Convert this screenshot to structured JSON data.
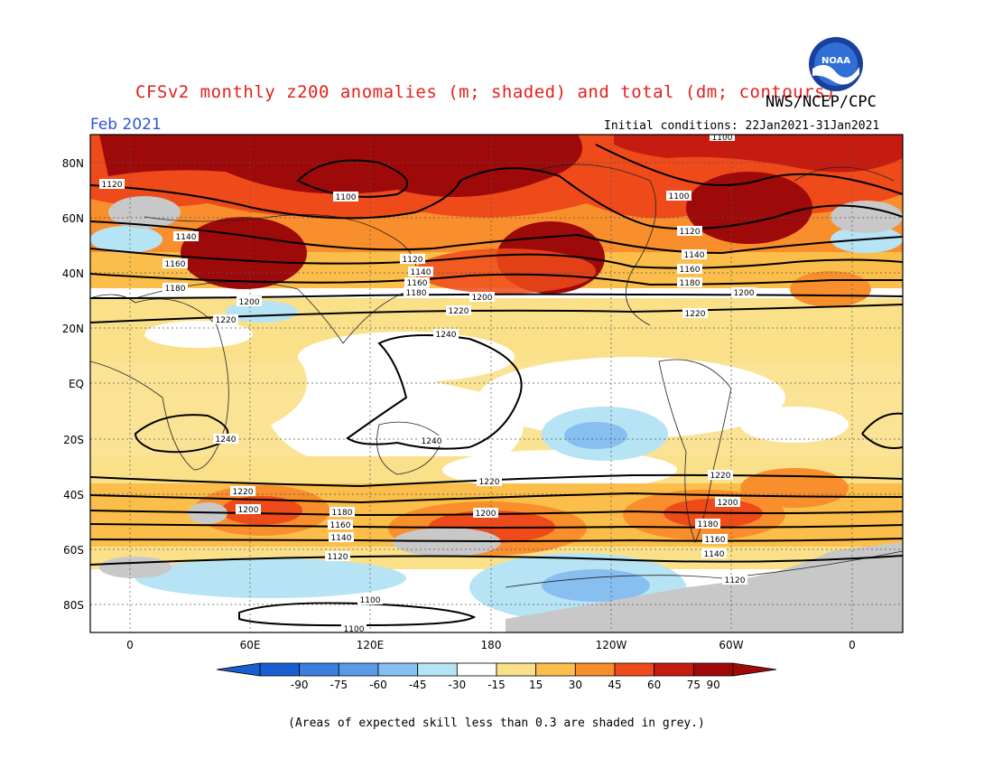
{
  "title": "CFSv2 monthly z200 anomalies (m; shaded) and total (dm; contours)",
  "agency": "NWS/NCEP/CPC",
  "logo_text": "NOAA",
  "forecast_month": "Feb 2021",
  "initial_conditions": "Initial conditions: 22Jan2021-31Jan2021",
  "lat_labels": [
    "80N",
    "60N",
    "40N",
    "20N",
    "EQ",
    "20S",
    "40S",
    "60S",
    "80S"
  ],
  "lon_labels": [
    "0",
    "60E",
    "120E",
    "180",
    "120W",
    "60W",
    "0"
  ],
  "contour_labels": [
    "1100",
    "1120",
    "1140",
    "1160",
    "1180",
    "1200",
    "1220",
    "1240"
  ],
  "colorbar": {
    "labels": [
      "-90",
      "-75",
      "-60",
      "-45",
      "-30",
      "-15",
      "15",
      "30",
      "45",
      "60",
      "75",
      "90"
    ],
    "colors": [
      "#1a5fd1",
      "#3a7ee0",
      "#5a9be8",
      "#86bff0",
      "#b6e4f5",
      "#ffffff",
      "#fbe08a",
      "#fbbe4a",
      "#f98e2c",
      "#ee4a1a",
      "#c61b10",
      "#9e0a0a"
    ]
  },
  "footnote": "(Areas of expected skill less than 0.3 are shaded in grey.)",
  "colors": {
    "title": "#e3201b",
    "month": "#2b50e0",
    "low_skill": "#c8c8c8"
  }
}
